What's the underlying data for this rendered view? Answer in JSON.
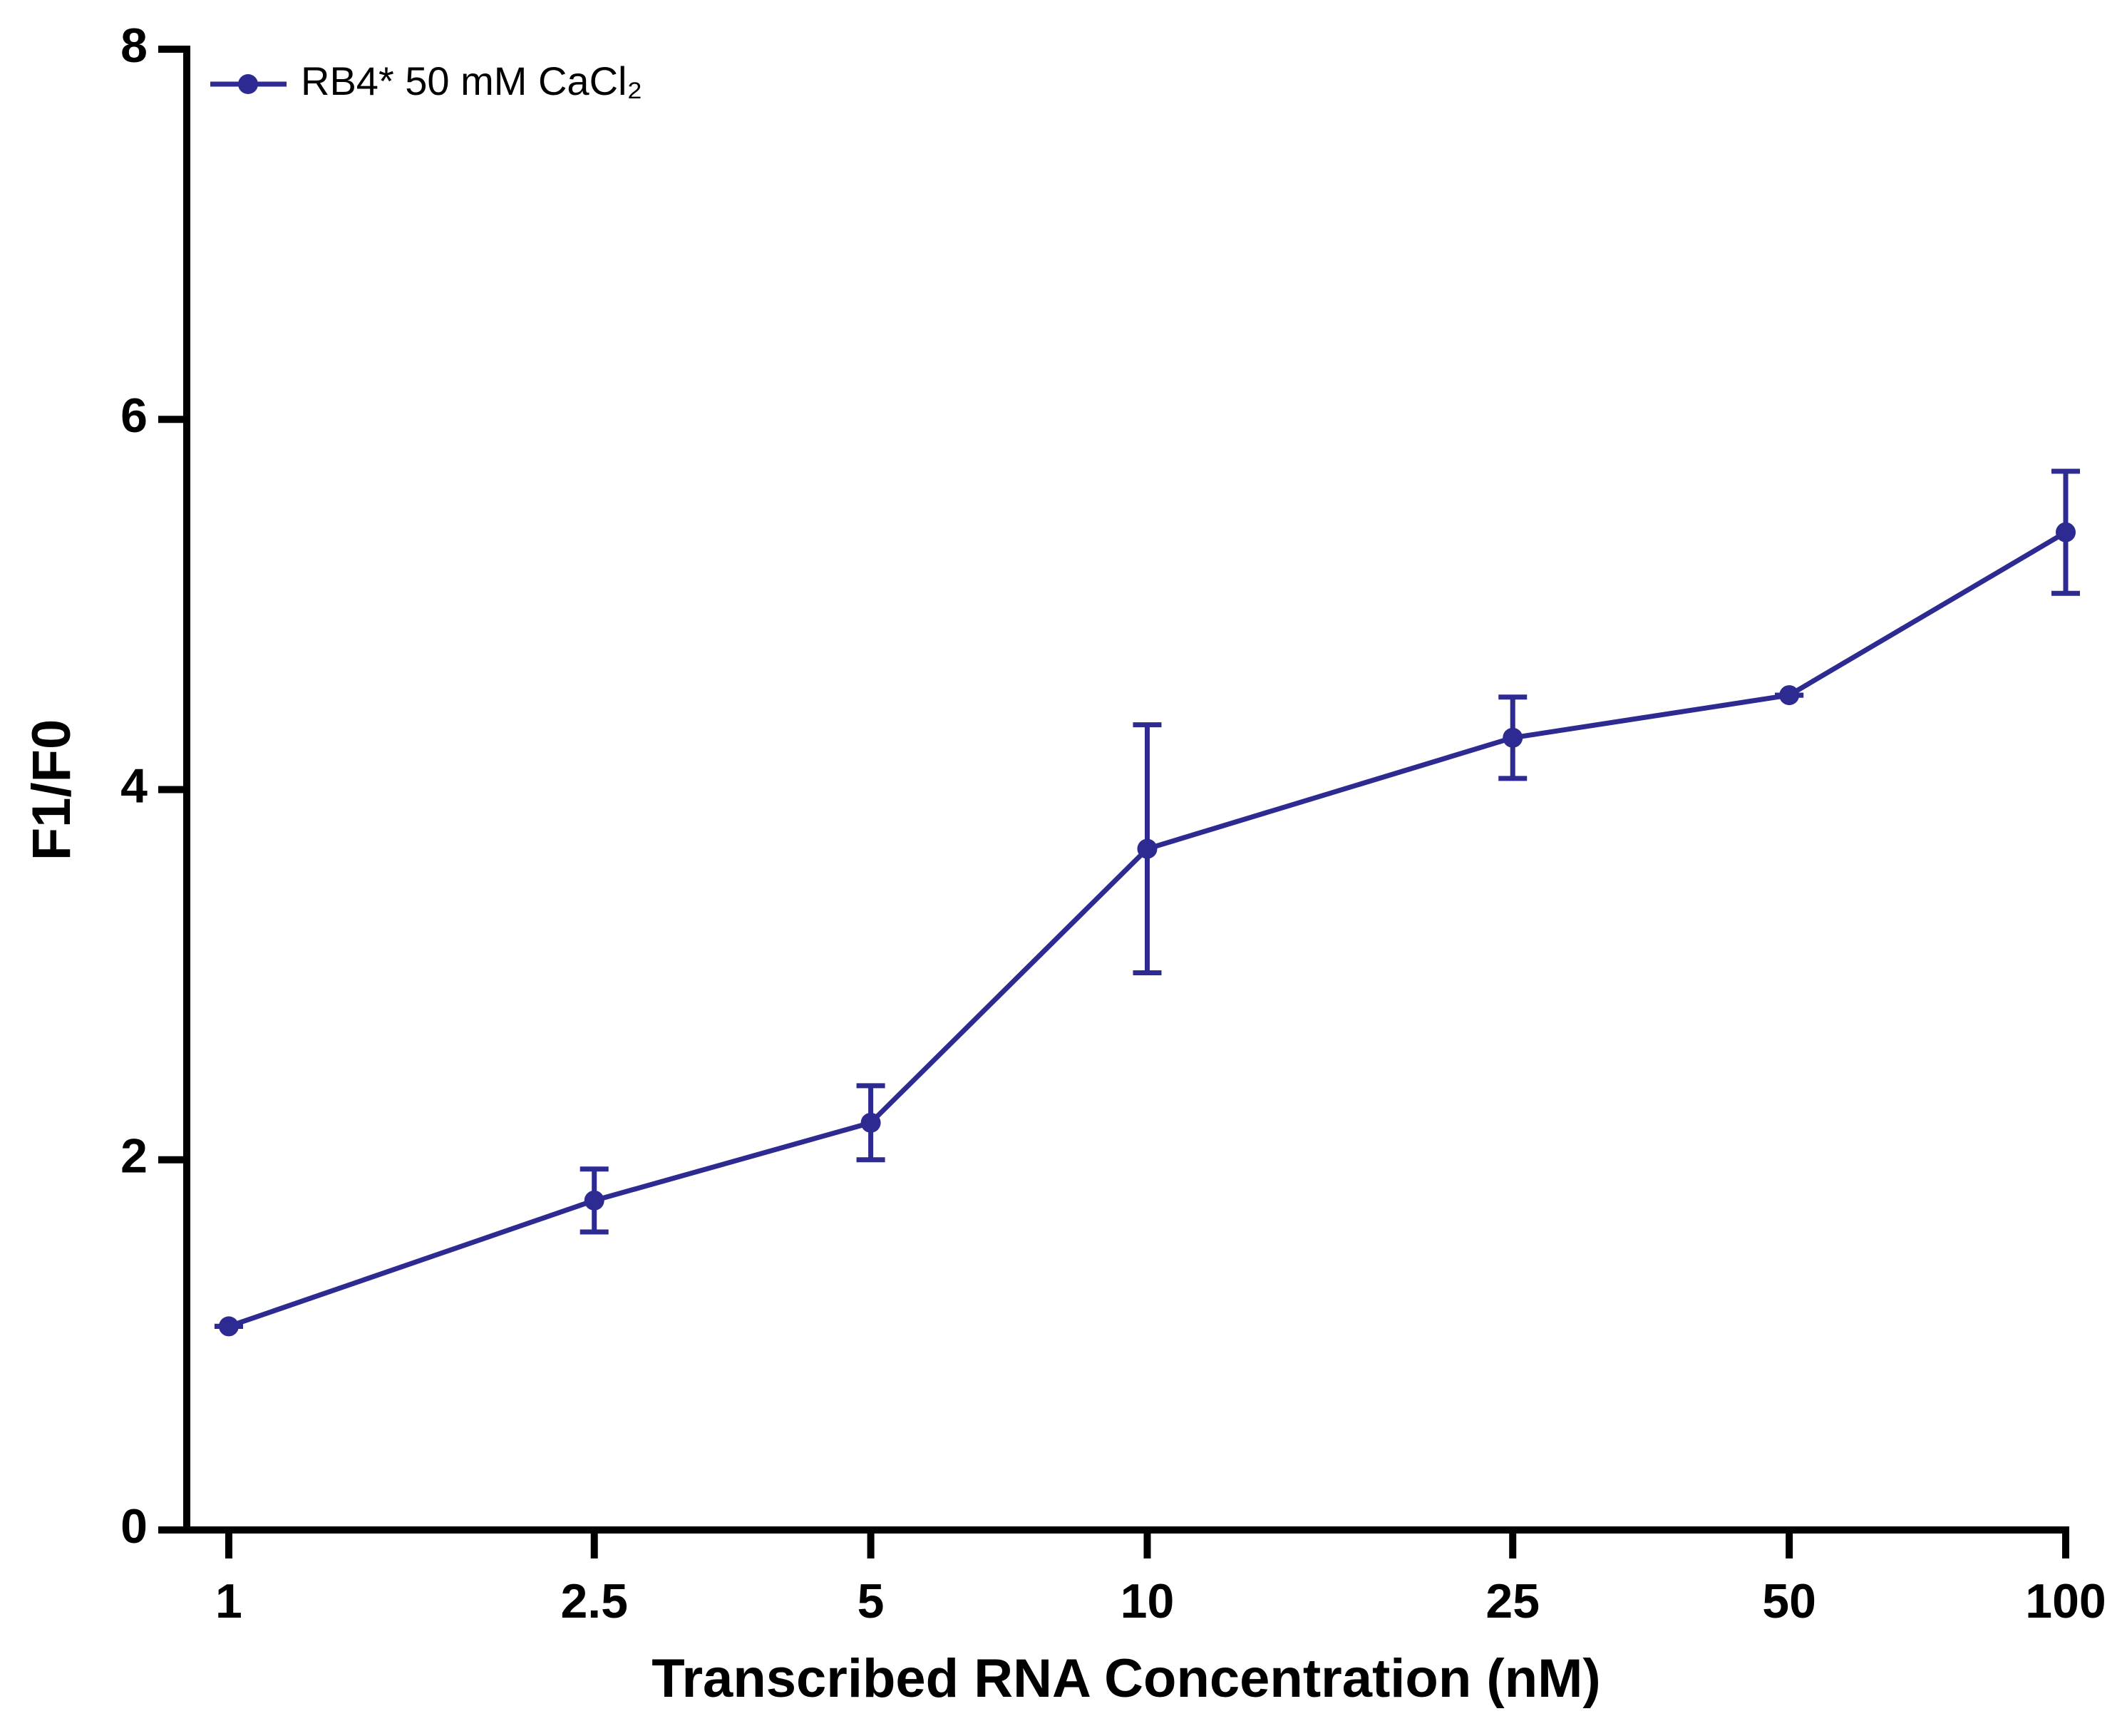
{
  "chart_data": {
    "type": "line",
    "xlabel": "Transcribed RNA Concentration (nM)",
    "ylabel": "F1/F0",
    "x": [
      1,
      2.5,
      5,
      10,
      25,
      50,
      100
    ],
    "series": [
      {
        "name": "RB4* 50 mM CaCl₂",
        "color": "#2d2a92",
        "values": [
          1.1,
          1.78,
          2.2,
          3.68,
          4.28,
          4.51,
          5.39
        ],
        "errors": [
          0,
          0.17,
          0.2,
          0.67,
          0.22,
          0,
          0.33
        ]
      }
    ],
    "xscale": "log",
    "xlim": [
      0.9,
      100
    ],
    "xticks": [
      1,
      2.5,
      5,
      10,
      25,
      50,
      100
    ],
    "ylim": [
      0,
      8
    ],
    "yticks": [
      0,
      2,
      4,
      6,
      8
    ],
    "legend": "upper left"
  }
}
